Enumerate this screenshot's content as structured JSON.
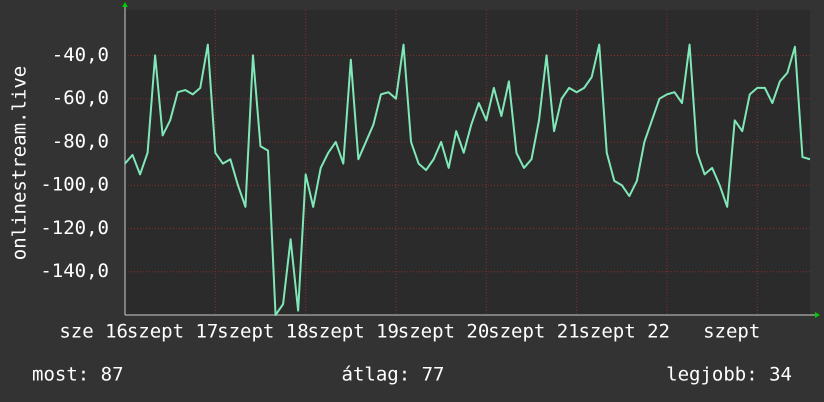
{
  "chart_data": {
    "type": "line",
    "ylabel": "onlinestream.live",
    "xlim": [
      0,
      182
    ],
    "ylim": [
      -160,
      -19
    ],
    "grid": true,
    "yticks": [
      {
        "value": -140,
        "label": "-140,0"
      },
      {
        "value": -120,
        "label": "-120,0"
      },
      {
        "value": -100,
        "label": "-100,0"
      },
      {
        "value": -80,
        "label": "-80,0"
      },
      {
        "value": -60,
        "label": "-60,0"
      },
      {
        "value": -40,
        "label": "-40,0"
      }
    ],
    "xticks": [
      {
        "value": 0,
        "label": "sze 16"
      },
      {
        "value": 24,
        "label": "szept 17"
      },
      {
        "value": 48,
        "label": "szept 18"
      },
      {
        "value": 72,
        "label": "szept 19"
      },
      {
        "value": 96,
        "label": "szept 20"
      },
      {
        "value": 120,
        "label": "szept 21"
      },
      {
        "value": 144,
        "label": "szept 22"
      },
      {
        "value": 168,
        "label": "szept"
      }
    ],
    "x": [
      0,
      2,
      4,
      6,
      8,
      10,
      12,
      14,
      16,
      18,
      20,
      22,
      24,
      26,
      28,
      30,
      32,
      34,
      36,
      38,
      40,
      42,
      44,
      46,
      48,
      50,
      52,
      54,
      56,
      58,
      60,
      62,
      64,
      66,
      68,
      70,
      72,
      74,
      76,
      78,
      80,
      82,
      84,
      86,
      88,
      90,
      92,
      94,
      96,
      98,
      100,
      102,
      104,
      106,
      108,
      110,
      112,
      114,
      116,
      118,
      120,
      122,
      124,
      126,
      128,
      130,
      132,
      134,
      136,
      138,
      140,
      142,
      144,
      146,
      148,
      150,
      152,
      154,
      156,
      158,
      160,
      162,
      164,
      166,
      168,
      170,
      172,
      174,
      176,
      178,
      180,
      182
    ],
    "series": [
      {
        "color": "#80e8b8",
        "values": [
          -90,
          -86,
          -95,
          -85,
          -40,
          -77,
          -70,
          -57,
          -56,
          -58,
          -55,
          -35,
          -85,
          -90,
          -88,
          -100,
          -110,
          -40,
          -82,
          -84,
          -160,
          -155,
          -125,
          -158,
          -95,
          -110,
          -92,
          -85,
          -80,
          -90,
          -42,
          -88,
          -80,
          -72,
          -58,
          -57,
          -60,
          -35,
          -80,
          -90,
          -93,
          -88,
          -80,
          -92,
          -75,
          -85,
          -72,
          -62,
          -70,
          -55,
          -68,
          -52,
          -85,
          -92,
          -88,
          -70,
          -40,
          -75,
          -60,
          -55,
          -57,
          -55,
          -50,
          -35,
          -85,
          -98,
          -100,
          -105,
          -98,
          -80,
          -70,
          -60,
          -58,
          -57,
          -62,
          -35,
          -85,
          -95,
          -92,
          -100,
          -110,
          -70,
          -75,
          -58,
          -55,
          -55,
          -62,
          -52,
          -48,
          -36,
          -87,
          -88
        ]
      }
    ],
    "footer": [
      "most: 87",
      "átlag: 77",
      "legjobb: 34"
    ]
  }
}
